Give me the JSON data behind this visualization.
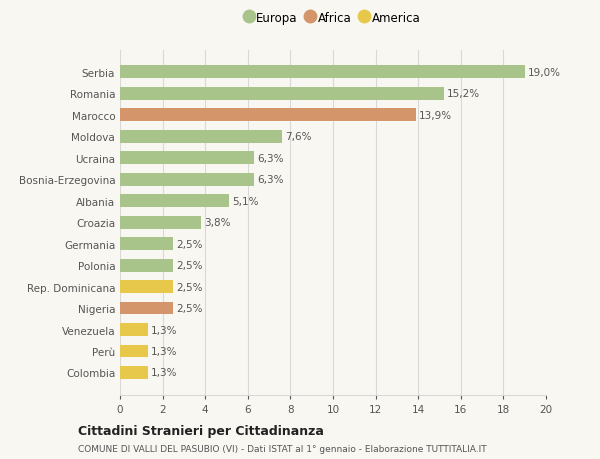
{
  "categories": [
    "Colombia",
    "Perù",
    "Venezuela",
    "Nigeria",
    "Rep. Dominicana",
    "Polonia",
    "Germania",
    "Croazia",
    "Albania",
    "Bosnia-Erzegovina",
    "Ucraina",
    "Moldova",
    "Marocco",
    "Romania",
    "Serbia"
  ],
  "values": [
    1.3,
    1.3,
    1.3,
    2.5,
    2.5,
    2.5,
    2.5,
    3.8,
    5.1,
    6.3,
    6.3,
    7.6,
    13.9,
    15.2,
    19.0
  ],
  "labels": [
    "1,3%",
    "1,3%",
    "1,3%",
    "2,5%",
    "2,5%",
    "2,5%",
    "2,5%",
    "3,8%",
    "5,1%",
    "6,3%",
    "6,3%",
    "7,6%",
    "13,9%",
    "15,2%",
    "19,0%"
  ],
  "colors": [
    "#e8c84a",
    "#e8c84a",
    "#e8c84a",
    "#d4956a",
    "#e8c84a",
    "#a8c48a",
    "#a8c48a",
    "#a8c48a",
    "#a8c48a",
    "#a8c48a",
    "#a8c48a",
    "#a8c48a",
    "#d4956a",
    "#a8c48a",
    "#a8c48a"
  ],
  "legend": [
    {
      "label": "Europa",
      "color": "#a8c48a"
    },
    {
      "label": "Africa",
      "color": "#d4956a"
    },
    {
      "label": "America",
      "color": "#e8c84a"
    }
  ],
  "xlim": [
    0,
    20
  ],
  "xticks": [
    0,
    2,
    4,
    6,
    8,
    10,
    12,
    14,
    16,
    18,
    20
  ],
  "title": "Cittadini Stranieri per Cittadinanza",
  "subtitle": "COMUNE DI VALLI DEL PASUBIO (VI) - Dati ISTAT al 1° gennaio - Elaborazione TUTTITALIA.IT",
  "background_color": "#f9f7f2",
  "grid_color": "#d8d8d8",
  "bar_height": 0.6
}
